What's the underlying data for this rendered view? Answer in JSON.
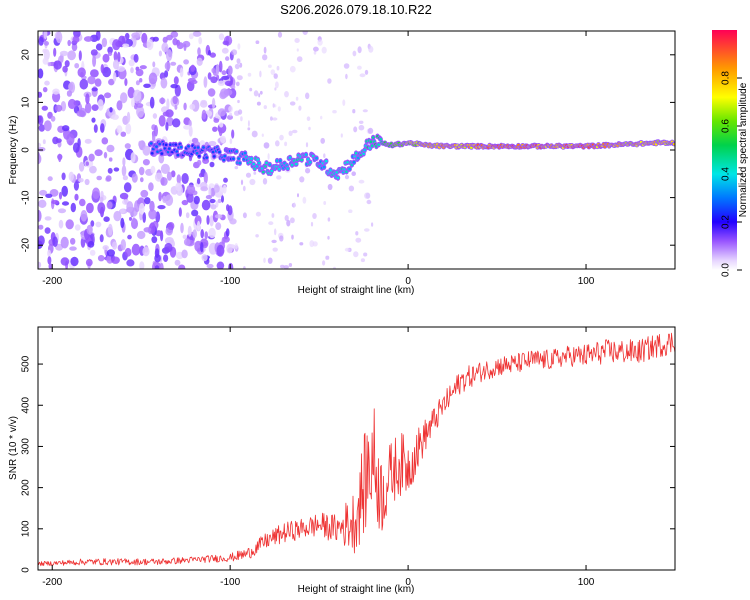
{
  "title": "S206.2026.079.18.10.R22",
  "chart_data": [
    {
      "type": "heatmap",
      "title": "S206.2026.079.18.10.R22",
      "xlabel": "Height of straight line (km)",
      "ylabel": "Frequency (Hz)",
      "xlim": [
        -208,
        150
      ],
      "ylim": [
        -25,
        25
      ],
      "xticks": [
        -200,
        -100,
        0,
        100
      ],
      "yticks": [
        -20,
        -10,
        0,
        10,
        20
      ],
      "grid": false,
      "colorbar": {
        "label": "Normalized spectral amplitude",
        "range": [
          0,
          1
        ],
        "ticks": [
          0.0,
          0.2,
          0.4,
          0.6,
          0.8
        ],
        "tick_labels": [
          "0.0",
          "0.2",
          "0.4",
          "0.6",
          "0.8"
        ]
      },
      "ridge": [
        {
          "x": -140,
          "freq": 0.5,
          "amp": 0.28
        },
        {
          "x": -100,
          "freq": -1.0,
          "amp": 0.3
        },
        {
          "x": -90,
          "freq": -2.0,
          "amp": 0.4
        },
        {
          "x": -80,
          "freq": -4.0,
          "amp": 0.45
        },
        {
          "x": -70,
          "freq": -3.0,
          "amp": 0.4
        },
        {
          "x": -60,
          "freq": -1.5,
          "amp": 0.45
        },
        {
          "x": -50,
          "freq": -2.5,
          "amp": 0.4
        },
        {
          "x": -40,
          "freq": -5.0,
          "amp": 0.45
        },
        {
          "x": -30,
          "freq": -2.0,
          "amp": 0.4
        },
        {
          "x": -20,
          "freq": 2.0,
          "amp": 0.5
        },
        {
          "x": -10,
          "freq": 1.0,
          "amp": 0.6
        },
        {
          "x": 0,
          "freq": 1.5,
          "amp": 0.7
        },
        {
          "x": 10,
          "freq": 1.0,
          "amp": 0.8
        },
        {
          "x": 20,
          "freq": 0.8,
          "amp": 0.85
        },
        {
          "x": 50,
          "freq": 0.8,
          "amp": 0.9
        },
        {
          "x": 100,
          "freq": 0.8,
          "amp": 0.9
        },
        {
          "x": 140,
          "freq": 1.5,
          "amp": 0.8
        },
        {
          "x": 150,
          "freq": 1.5,
          "amp": 0.8
        }
      ]
    },
    {
      "type": "line",
      "xlabel": "Height of straight line (km)",
      "ylabel": "SNR (10 * v/v)",
      "xlim": [
        -208,
        150
      ],
      "ylim": [
        0,
        590
      ],
      "xticks": [
        -200,
        -100,
        0,
        100
      ],
      "yticks": [
        0,
        100,
        200,
        300,
        400,
        500
      ],
      "grid": false,
      "series": [
        {
          "name": "SNR",
          "color": "#ee3333",
          "x": [
            -208,
            -180,
            -140,
            -120,
            -100,
            -90,
            -80,
            -70,
            -60,
            -50,
            -40,
            -30,
            -25,
            -20,
            -15,
            -10,
            -5,
            0,
            10,
            20,
            30,
            40,
            50,
            60,
            70,
            80,
            90,
            100,
            110,
            120,
            130,
            140,
            150
          ],
          "y": [
            15,
            20,
            20,
            25,
            30,
            40,
            70,
            90,
            100,
            110,
            100,
            120,
            200,
            280,
            180,
            230,
            260,
            250,
            330,
            400,
            460,
            480,
            495,
            500,
            510,
            510,
            520,
            520,
            530,
            530,
            530,
            545,
            555
          ],
          "jitter": [
            5,
            8,
            8,
            8,
            10,
            15,
            20,
            25,
            25,
            30,
            35,
            80,
            120,
            150,
            100,
            80,
            80,
            70,
            40,
            30,
            30,
            25,
            25,
            25,
            25,
            25,
            25,
            30,
            30,
            30,
            30,
            30,
            30
          ]
        }
      ]
    }
  ]
}
